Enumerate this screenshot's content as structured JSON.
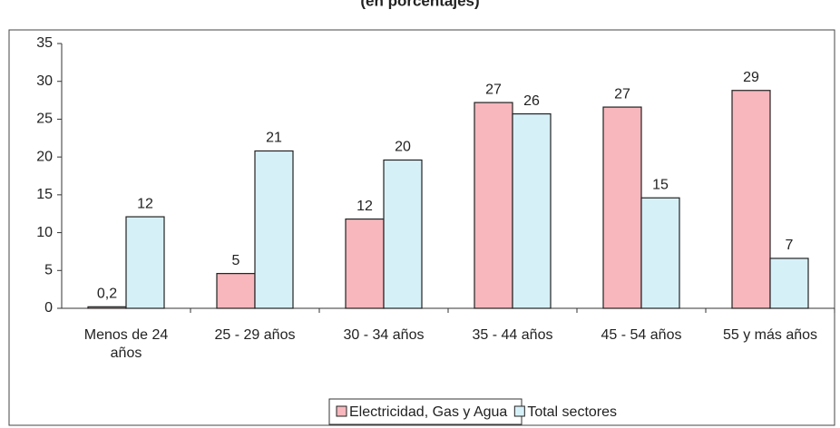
{
  "chart_data": {
    "type": "bar",
    "title": "(en porcentajes)",
    "categories": [
      "Menos de 24 años",
      "25 - 29 años",
      "30 - 34 años",
      "35 - 44 años",
      "45 - 54 años",
      "55 y más años"
    ],
    "series": [
      {
        "name": "Electricidad, Gas y Agua",
        "color": "#f7b7bd",
        "values": [
          0.2,
          4.6,
          11.8,
          27.2,
          26.6,
          28.8
        ],
        "value_labels": [
          "0,2",
          "5",
          "12",
          "27",
          "27",
          "29"
        ]
      },
      {
        "name": "Total sectores",
        "color": "#d6f0f8",
        "values": [
          12.1,
          20.8,
          19.6,
          25.7,
          14.6,
          6.6
        ],
        "value_labels": [
          "12",
          "21",
          "20",
          "26",
          "15",
          "7"
        ]
      }
    ],
    "ylim": [
      0,
      35
    ],
    "yticks": [
      0,
      5,
      10,
      15,
      20,
      25,
      30,
      35
    ],
    "grid": false,
    "legend": "bottom"
  }
}
